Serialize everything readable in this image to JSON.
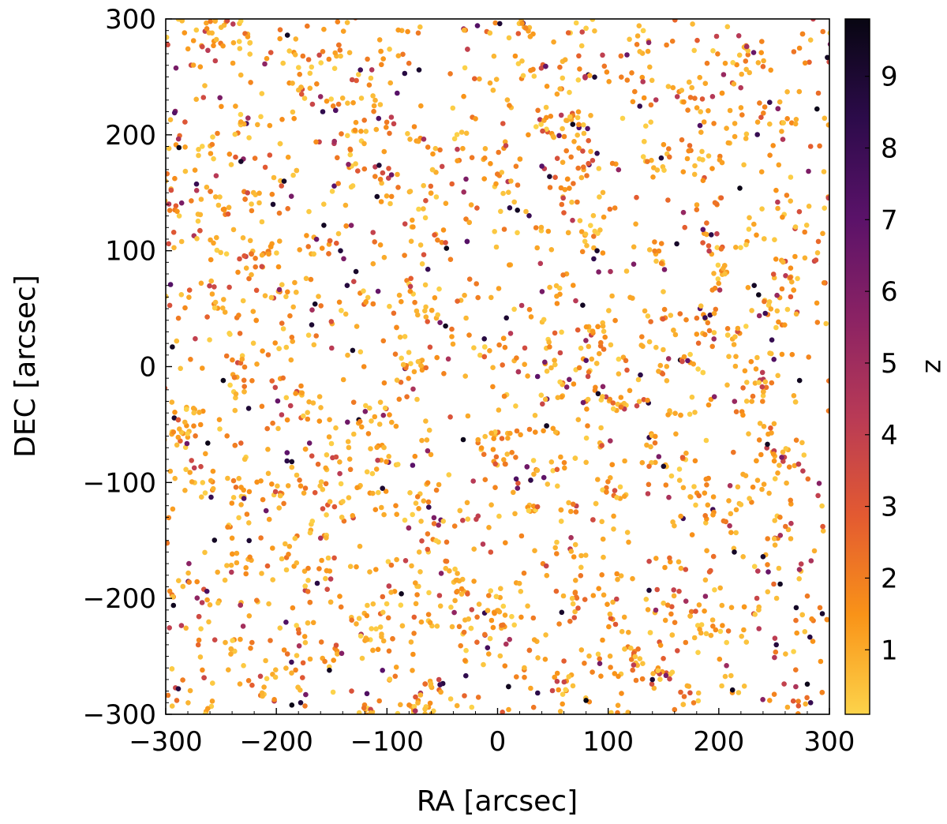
{
  "chart_data": {
    "type": "scatter",
    "xlabel": "RA [arcsec]",
    "ylabel": "DEC [arcsec]",
    "xlim": [
      -300,
      300
    ],
    "ylim": [
      -300,
      300
    ],
    "xticks": [
      "−300",
      "−200",
      "−100",
      "0",
      "100",
      "200",
      "300"
    ],
    "yticks": [
      "−300",
      "−200",
      "−100",
      "0",
      "100",
      "200",
      "300"
    ],
    "xtick_values": [
      -300,
      -200,
      -100,
      0,
      100,
      200,
      300
    ],
    "ytick_values": [
      -300,
      -200,
      -100,
      0,
      100,
      200,
      300
    ],
    "grid": false,
    "colorbar": {
      "label": "z",
      "colormap": "inferno_r",
      "range": [
        0.1,
        9.8
      ],
      "ticks": [
        "1",
        "2",
        "3",
        "4",
        "5",
        "6",
        "7",
        "8",
        "9"
      ],
      "tick_values": [
        1,
        2,
        3,
        4,
        5,
        6,
        7,
        8,
        9
      ],
      "colors": [
        "#fcd34a",
        "#f99318",
        "#e35a31",
        "#b83a56",
        "#8a2264",
        "#5a1269",
        "#2c0b4a",
        "#080612"
      ]
    },
    "series": [
      {
        "points": [
          {
            "x": -283,
            "y": 288,
            "z": 1.4
          },
          {
            "x": -267,
            "y": 276,
            "z": 3.5
          },
          {
            "x": -251,
            "y": 232,
            "z": 6.1
          },
          {
            "x": -190,
            "y": 286,
            "z": 9.4
          },
          {
            "x": -176,
            "y": 268,
            "z": 2.1
          },
          {
            "x": -157,
            "y": 291,
            "z": 1.2
          },
          {
            "x": -124,
            "y": 256,
            "z": 7.8
          },
          {
            "x": -84,
            "y": 253,
            "z": 8.6
          },
          {
            "x": -71,
            "y": 256,
            "z": 9.1
          },
          {
            "x": -160,
            "y": 233,
            "z": 5.4
          },
          {
            "x": -158,
            "y": 220,
            "z": 8.3
          },
          {
            "x": -116,
            "y": 243,
            "z": 1.8
          },
          {
            "x": -205,
            "y": 271,
            "z": 3.1
          },
          {
            "x": 2,
            "y": 296,
            "z": 8.9
          },
          {
            "x": 16,
            "y": 268,
            "z": 1.5
          },
          {
            "x": 64,
            "y": 288,
            "z": 2.6
          },
          {
            "x": 117,
            "y": 269,
            "z": 6.6
          },
          {
            "x": 136,
            "y": 272,
            "z": 1.1
          },
          {
            "x": 198,
            "y": 285,
            "z": 3.9
          },
          {
            "x": 246,
            "y": 228,
            "z": 8.1
          },
          {
            "x": 278,
            "y": 262,
            "z": 1.6
          },
          {
            "x": 290,
            "y": 236,
            "z": 2.4
          },
          {
            "x": -292,
            "y": 219,
            "z": 7.2
          },
          {
            "x": -288,
            "y": 189,
            "z": 9.6
          },
          {
            "x": -232,
            "y": 177,
            "z": 9.2
          },
          {
            "x": -210,
            "y": 172,
            "z": 2.9
          },
          {
            "x": -206,
            "y": 208,
            "z": 1.3
          },
          {
            "x": -272,
            "y": 152,
            "z": 4.3
          },
          {
            "x": -226,
            "y": 150,
            "z": 3.6
          },
          {
            "x": -193,
            "y": 160,
            "z": 9.3
          },
          {
            "x": -144,
            "y": 158,
            "z": 1.9
          },
          {
            "x": -52,
            "y": 187,
            "z": 2.2
          },
          {
            "x": -12,
            "y": 162,
            "z": 1.4
          },
          {
            "x": 40,
            "y": 173,
            "z": 7.1
          },
          {
            "x": 47,
            "y": 164,
            "z": 9.0
          },
          {
            "x": 68,
            "y": 209,
            "z": 9.5
          },
          {
            "x": 77,
            "y": 186,
            "z": 3.4
          },
          {
            "x": 90,
            "y": 184,
            "z": 8.2
          },
          {
            "x": 148,
            "y": 180,
            "z": 8.8
          },
          {
            "x": 183,
            "y": 208,
            "z": 7.3
          },
          {
            "x": 203,
            "y": 176,
            "z": 1.2
          },
          {
            "x": 219,
            "y": 154,
            "z": 9.7
          },
          {
            "x": 262,
            "y": 214,
            "z": 1.7
          },
          {
            "x": 283,
            "y": 190,
            "z": 2.8
          },
          {
            "x": -203,
            "y": 140,
            "z": 9.1
          },
          {
            "x": -157,
            "y": 122,
            "z": 9.4
          },
          {
            "x": -142,
            "y": 100,
            "z": 8.8
          },
          {
            "x": -128,
            "y": 82,
            "z": 9.2
          },
          {
            "x": -136,
            "y": 70,
            "z": 8.7
          },
          {
            "x": -165,
            "y": 54,
            "z": 9.3
          },
          {
            "x": -168,
            "y": 36,
            "z": 9.0
          },
          {
            "x": -108,
            "y": 65,
            "z": 6.7
          },
          {
            "x": -63,
            "y": 84,
            "z": 8.1
          },
          {
            "x": -47,
            "y": 107,
            "z": 3.2
          },
          {
            "x": 11,
            "y": 137,
            "z": 8.5
          },
          {
            "x": 18,
            "y": 135,
            "z": 9.4
          },
          {
            "x": 72,
            "y": 142,
            "z": 2.1
          },
          {
            "x": 96,
            "y": 129,
            "z": 1.3
          },
          {
            "x": 90,
            "y": 100,
            "z": 9.1
          },
          {
            "x": 87,
            "y": 93,
            "z": 8.3
          },
          {
            "x": 102,
            "y": 82,
            "z": 4.8
          },
          {
            "x": 162,
            "y": 106,
            "z": 9.2
          },
          {
            "x": 168,
            "y": 133,
            "z": 5.3
          },
          {
            "x": 232,
            "y": 70,
            "z": 9.3
          },
          {
            "x": 236,
            "y": 62,
            "z": 9.6
          },
          {
            "x": 242,
            "y": 46,
            "z": 7.9
          },
          {
            "x": 265,
            "y": 85,
            "z": 1.6
          },
          {
            "x": 290,
            "y": 108,
            "z": 2.5
          },
          {
            "x": -268,
            "y": 72,
            "z": 1.1
          },
          {
            "x": -294,
            "y": 17,
            "z": 9.4
          },
          {
            "x": -248,
            "y": -12,
            "z": 9.6
          },
          {
            "x": -225,
            "y": -36,
            "z": 8.9
          },
          {
            "x": -201,
            "y": -18,
            "z": 3.7
          },
          {
            "x": -150,
            "y": 16,
            "z": 4.2
          },
          {
            "x": -131,
            "y": 14,
            "z": 9.3
          },
          {
            "x": -82,
            "y": -26,
            "z": 2.3
          },
          {
            "x": -52,
            "y": 38,
            "z": 6.3
          },
          {
            "x": -47,
            "y": 35,
            "z": 9.5
          },
          {
            "x": -12,
            "y": 24,
            "z": 8.6
          },
          {
            "x": 8,
            "y": 42,
            "z": 9.0
          },
          {
            "x": 47,
            "y": 17,
            "z": 1.8
          },
          {
            "x": 77,
            "y": 53,
            "z": 9.4
          },
          {
            "x": 117,
            "y": -3,
            "z": 2.9
          },
          {
            "x": 180,
            "y": 28,
            "z": 1.4
          },
          {
            "x": 196,
            "y": -26,
            "z": 5.8
          },
          {
            "x": 248,
            "y": 23,
            "z": 8.1
          },
          {
            "x": 273,
            "y": -12,
            "z": 9.5
          },
          {
            "x": -262,
            "y": -66,
            "z": 9.7
          },
          {
            "x": -232,
            "y": -66,
            "z": 2.6
          },
          {
            "x": -186,
            "y": -82,
            "z": 9.2
          },
          {
            "x": -178,
            "y": -103,
            "z": 1.5
          },
          {
            "x": -170,
            "y": -66,
            "z": 6.5
          },
          {
            "x": -146,
            "y": -78,
            "z": 3.4
          },
          {
            "x": -104,
            "y": -105,
            "z": 9.0
          },
          {
            "x": -92,
            "y": -120,
            "z": 1.7
          },
          {
            "x": -31,
            "y": -63,
            "z": 9.6
          },
          {
            "x": -2,
            "y": -84,
            "z": 3.1
          },
          {
            "x": 30,
            "y": -98,
            "z": 8.3
          },
          {
            "x": 57,
            "y": -78,
            "z": 1.2
          },
          {
            "x": 137,
            "y": -86,
            "z": 2.4
          },
          {
            "x": 150,
            "y": -86,
            "z": 9.1
          },
          {
            "x": 189,
            "y": -102,
            "z": 1.9
          },
          {
            "x": 244,
            "y": -67,
            "z": 9.4
          },
          {
            "x": 276,
            "y": -90,
            "z": 4.1
          },
          {
            "x": 294,
            "y": -138,
            "z": 3.0
          },
          {
            "x": -279,
            "y": -170,
            "z": 5.6
          },
          {
            "x": -240,
            "y": -148,
            "z": 1.3
          },
          {
            "x": -208,
            "y": -172,
            "z": 2.7
          },
          {
            "x": -160,
            "y": -148,
            "z": 4.6
          },
          {
            "x": -110,
            "y": -175,
            "z": 1.4
          },
          {
            "x": -87,
            "y": -196,
            "z": 9.5
          },
          {
            "x": -46,
            "y": -168,
            "z": 2.2
          },
          {
            "x": 7,
            "y": -152,
            "z": 1.6
          },
          {
            "x": 44,
            "y": -172,
            "z": 3.8
          },
          {
            "x": 79,
            "y": -201,
            "z": 2.5
          },
          {
            "x": 122,
            "y": -183,
            "z": 1.1
          },
          {
            "x": 137,
            "y": -193,
            "z": 8.9
          },
          {
            "x": 170,
            "y": -175,
            "z": 3.3
          },
          {
            "x": 214,
            "y": -160,
            "z": 9.3
          },
          {
            "x": 240,
            "y": -164,
            "z": 9.1
          },
          {
            "x": 280,
            "y": -198,
            "z": 2.1
          },
          {
            "x": -293,
            "y": -206,
            "z": 9.5
          },
          {
            "x": -270,
            "y": -236,
            "z": 1.8
          },
          {
            "x": -230,
            "y": -224,
            "z": 4.9
          },
          {
            "x": -190,
            "y": -248,
            "z": 2.3
          },
          {
            "x": -152,
            "y": -262,
            "z": 9.4
          },
          {
            "x": -108,
            "y": -244,
            "z": 1.5
          },
          {
            "x": -53,
            "y": -270,
            "z": 3.7
          },
          {
            "x": -8,
            "y": -248,
            "z": 1.2
          },
          {
            "x": 58,
            "y": -212,
            "z": 9.2
          },
          {
            "x": 60,
            "y": -254,
            "z": 2.8
          },
          {
            "x": 112,
            "y": -282,
            "z": 1.6
          },
          {
            "x": 140,
            "y": -270,
            "z": 9.0
          },
          {
            "x": 170,
            "y": -238,
            "z": 1.9
          },
          {
            "x": 207,
            "y": -258,
            "z": 5.1
          },
          {
            "x": 252,
            "y": -240,
            "z": 8.7
          },
          {
            "x": 270,
            "y": -208,
            "z": 9.3
          },
          {
            "x": 280,
            "y": -274,
            "z": 9.6
          },
          {
            "x": -290,
            "y": -288,
            "z": 2.4
          },
          {
            "x": -262,
            "y": -295,
            "z": 1.3
          },
          {
            "x": -186,
            "y": -292,
            "z": 9.7
          },
          {
            "x": -178,
            "y": -290,
            "z": 8.8
          },
          {
            "x": -132,
            "y": -280,
            "z": 3.2
          },
          {
            "x": -80,
            "y": -292,
            "z": 1.7
          },
          {
            "x": -30,
            "y": -284,
            "z": 2.6
          },
          {
            "x": 10,
            "y": -296,
            "z": 1.1
          },
          {
            "x": 80,
            "y": -288,
            "z": 9.8
          },
          {
            "x": 160,
            "y": -296,
            "z": 2.0
          },
          {
            "x": 246,
            "y": -288,
            "z": 1.4
          },
          {
            "x": 283,
            "y": -290,
            "z": 8.1
          }
        ]
      }
    ],
    "background_scatter": {
      "description_free": true,
      "count": 2600,
      "z_distribution": {
        "mean": 1.6,
        "tail_max": 9.8
      },
      "seed": 7
    }
  }
}
